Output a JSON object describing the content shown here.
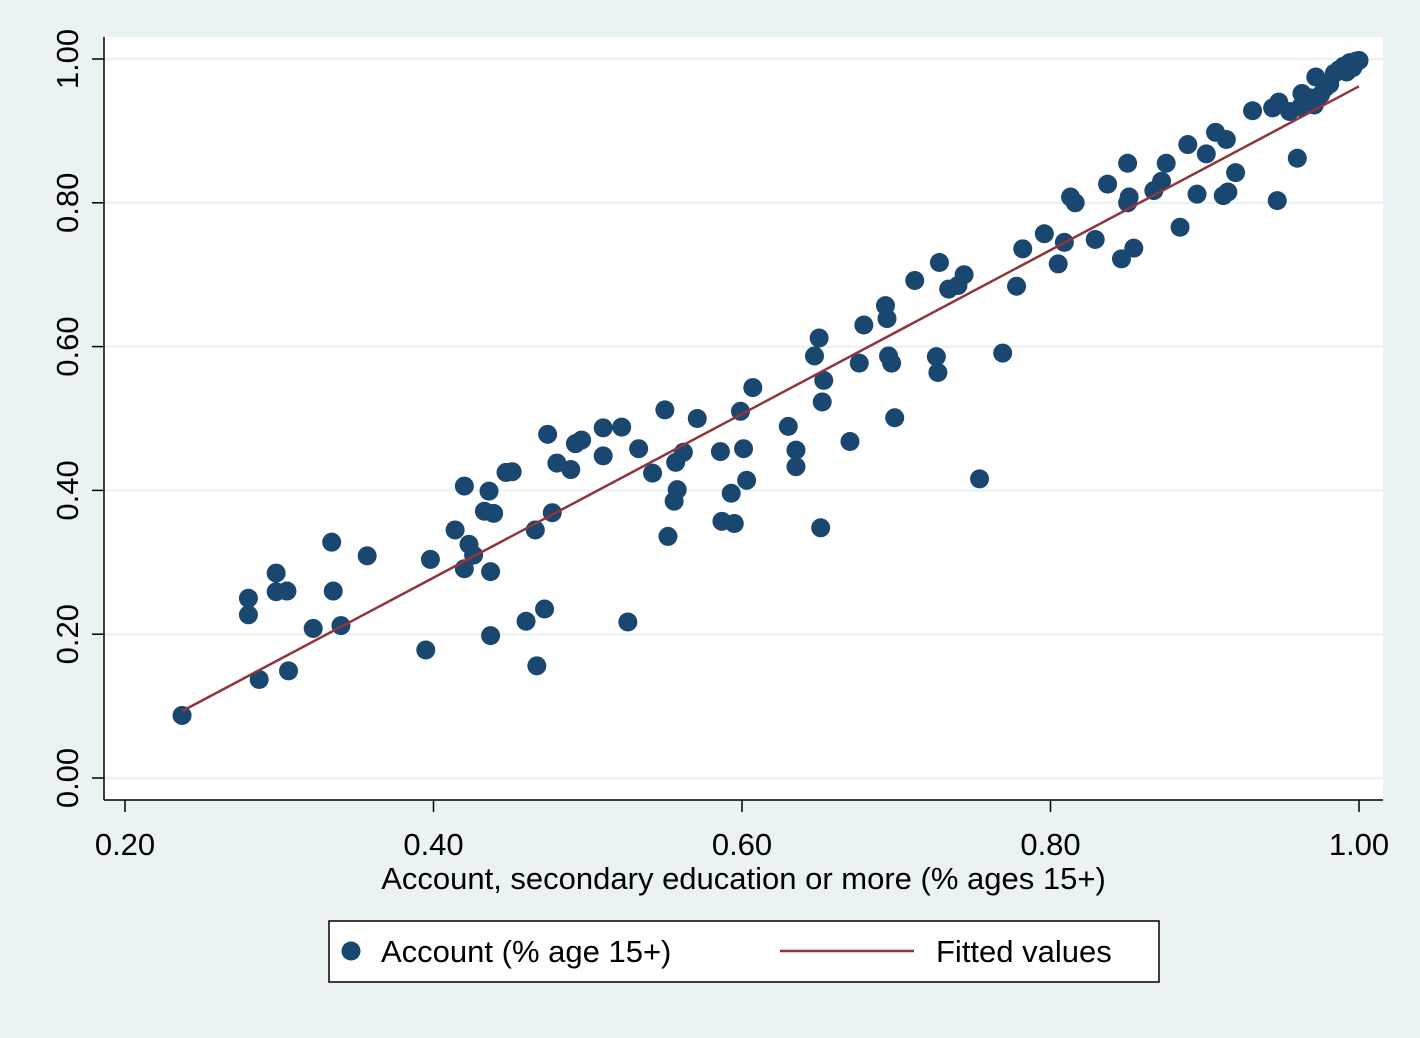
{
  "chart_data": {
    "type": "scatter",
    "xlabel": "Account, secondary education or more (% ages 15+)",
    "ylabel": "",
    "xlim": [
      0.2,
      1.0
    ],
    "ylim": [
      0.0,
      1.0
    ],
    "x_ticks": [
      "0.20",
      "0.40",
      "0.60",
      "0.80",
      "1.00"
    ],
    "x_tick_values": [
      0.2,
      0.4,
      0.6,
      0.8,
      1.0
    ],
    "y_ticks": [
      "0.00",
      "0.20",
      "0.40",
      "0.60",
      "0.80",
      "1.00"
    ],
    "y_tick_values": [
      0.0,
      0.2,
      0.4,
      0.6,
      0.8,
      1.0
    ],
    "grid": "horizontal",
    "legend_position": "bottom",
    "colors": {
      "background": "#eaf2f3",
      "plot_background": "#ffffff",
      "marker": "#1a476f",
      "fit_line": "#90353b"
    },
    "series": [
      {
        "name": "Account (% age 15+)",
        "kind": "scatter",
        "points": [
          [
            0.237,
            0.087
          ],
          [
            0.28,
            0.25
          ],
          [
            0.28,
            0.227
          ],
          [
            0.287,
            0.137
          ],
          [
            0.298,
            0.285
          ],
          [
            0.298,
            0.259
          ],
          [
            0.305,
            0.26
          ],
          [
            0.306,
            0.149
          ],
          [
            0.322,
            0.208
          ],
          [
            0.334,
            0.328
          ],
          [
            0.335,
            0.26
          ],
          [
            0.34,
            0.212
          ],
          [
            0.357,
            0.309
          ],
          [
            0.395,
            0.178
          ],
          [
            0.398,
            0.304
          ],
          [
            0.414,
            0.345
          ],
          [
            0.42,
            0.406
          ],
          [
            0.42,
            0.291
          ],
          [
            0.423,
            0.325
          ],
          [
            0.426,
            0.31
          ],
          [
            0.433,
            0.371
          ],
          [
            0.436,
            0.399
          ],
          [
            0.437,
            0.287
          ],
          [
            0.437,
            0.198
          ],
          [
            0.439,
            0.368
          ],
          [
            0.447,
            0.425
          ],
          [
            0.451,
            0.426
          ],
          [
            0.46,
            0.218
          ],
          [
            0.466,
            0.345
          ],
          [
            0.467,
            0.156
          ],
          [
            0.472,
            0.235
          ],
          [
            0.474,
            0.478
          ],
          [
            0.477,
            0.369
          ],
          [
            0.48,
            0.438
          ],
          [
            0.489,
            0.429
          ],
          [
            0.492,
            0.465
          ],
          [
            0.496,
            0.47
          ],
          [
            0.51,
            0.487
          ],
          [
            0.51,
            0.448
          ],
          [
            0.522,
            0.488
          ],
          [
            0.526,
            0.217
          ],
          [
            0.533,
            0.458
          ],
          [
            0.542,
            0.424
          ],
          [
            0.55,
            0.512
          ],
          [
            0.552,
            0.336
          ],
          [
            0.556,
            0.385
          ],
          [
            0.557,
            0.439
          ],
          [
            0.558,
            0.401
          ],
          [
            0.562,
            0.453
          ],
          [
            0.571,
            0.5
          ],
          [
            0.586,
            0.454
          ],
          [
            0.587,
            0.357
          ],
          [
            0.593,
            0.396
          ],
          [
            0.595,
            0.354
          ],
          [
            0.599,
            0.51
          ],
          [
            0.601,
            0.458
          ],
          [
            0.603,
            0.414
          ],
          [
            0.607,
            0.543
          ],
          [
            0.63,
            0.489
          ],
          [
            0.635,
            0.456
          ],
          [
            0.635,
            0.433
          ],
          [
            0.647,
            0.587
          ],
          [
            0.65,
            0.612
          ],
          [
            0.651,
            0.348
          ],
          [
            0.652,
            0.523
          ],
          [
            0.653,
            0.553
          ],
          [
            0.67,
            0.468
          ],
          [
            0.676,
            0.577
          ],
          [
            0.679,
            0.63
          ],
          [
            0.693,
            0.657
          ],
          [
            0.694,
            0.639
          ],
          [
            0.695,
            0.587
          ],
          [
            0.697,
            0.577
          ],
          [
            0.699,
            0.501
          ],
          [
            0.712,
            0.692
          ],
          [
            0.726,
            0.586
          ],
          [
            0.727,
            0.564
          ],
          [
            0.728,
            0.717
          ],
          [
            0.734,
            0.68
          ],
          [
            0.74,
            0.685
          ],
          [
            0.744,
            0.7
          ],
          [
            0.754,
            0.416
          ],
          [
            0.769,
            0.591
          ],
          [
            0.778,
            0.684
          ],
          [
            0.782,
            0.736
          ],
          [
            0.796,
            0.757
          ],
          [
            0.805,
            0.715
          ],
          [
            0.809,
            0.745
          ],
          [
            0.813,
            0.808
          ],
          [
            0.816,
            0.8
          ],
          [
            0.829,
            0.749
          ],
          [
            0.837,
            0.826
          ],
          [
            0.846,
            0.722
          ],
          [
            0.85,
            0.855
          ],
          [
            0.85,
            0.8
          ],
          [
            0.851,
            0.808
          ],
          [
            0.854,
            0.737
          ],
          [
            0.867,
            0.817
          ],
          [
            0.872,
            0.83
          ],
          [
            0.875,
            0.855
          ],
          [
            0.884,
            0.766
          ],
          [
            0.889,
            0.881
          ],
          [
            0.895,
            0.812
          ],
          [
            0.901,
            0.868
          ],
          [
            0.907,
            0.898
          ],
          [
            0.912,
            0.81
          ],
          [
            0.914,
            0.888
          ],
          [
            0.915,
            0.815
          ],
          [
            0.92,
            0.842
          ],
          [
            0.931,
            0.928
          ],
          [
            0.944,
            0.932
          ],
          [
            0.947,
            0.803
          ],
          [
            0.948,
            0.94
          ],
          [
            0.955,
            0.927
          ],
          [
            0.96,
            0.862
          ],
          [
            0.962,
            0.933
          ],
          [
            0.963,
            0.952
          ],
          [
            0.965,
            0.943
          ],
          [
            0.968,
            0.946
          ],
          [
            0.971,
            0.936
          ],
          [
            0.972,
            0.975
          ],
          [
            0.975,
            0.95
          ],
          [
            0.978,
            0.96
          ],
          [
            0.981,
            0.965
          ],
          [
            0.984,
            0.98
          ],
          [
            0.987,
            0.985
          ],
          [
            0.99,
            0.99
          ],
          [
            0.992,
            0.982
          ],
          [
            0.994,
            0.995
          ],
          [
            0.996,
            0.988
          ],
          [
            0.998,
            0.997
          ],
          [
            1.0,
            0.998
          ]
        ]
      },
      {
        "name": "Fitted values",
        "kind": "line",
        "points": [
          [
            0.237,
            0.093
          ],
          [
            1.0,
            0.962
          ]
        ]
      }
    ]
  }
}
